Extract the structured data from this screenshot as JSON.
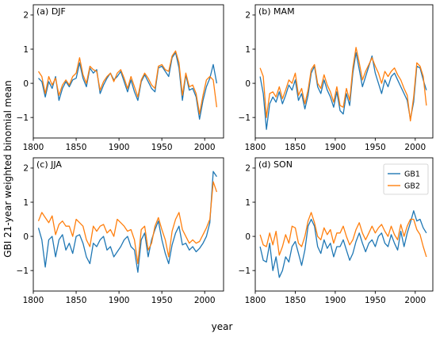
{
  "figure": {
    "ylabel": "GBI 21-year weighted binomial mean",
    "xlabel": "year",
    "colors": {
      "GB1": "#1f77b4",
      "GB2": "#ff7f0e"
    }
  },
  "chart_data": [
    {
      "type": "line",
      "panel": "(a) DJF",
      "xlim": [
        1800,
        2022
      ],
      "ylim": [
        -1.6,
        2.3
      ],
      "xticks": [
        1800,
        1850,
        1900,
        1950,
        2000
      ],
      "yticks": [
        -1,
        0,
        1,
        2
      ],
      "series": [
        {
          "name": "GB1",
          "color": "#1f77b4",
          "x": [
            1806,
            1810,
            1814,
            1818,
            1822,
            1826,
            1830,
            1834,
            1838,
            1842,
            1846,
            1850,
            1854,
            1858,
            1862,
            1866,
            1870,
            1874,
            1878,
            1882,
            1886,
            1890,
            1894,
            1898,
            1902,
            1906,
            1910,
            1914,
            1918,
            1922,
            1926,
            1930,
            1934,
            1938,
            1942,
            1946,
            1950,
            1954,
            1958,
            1962,
            1966,
            1970,
            1974,
            1978,
            1982,
            1986,
            1990,
            1994,
            1998,
            2002,
            2006,
            2010,
            2014
          ],
          "y": [
            0.15,
            0.05,
            -0.4,
            0.05,
            -0.15,
            0.2,
            -0.5,
            -0.15,
            0.05,
            -0.1,
            0.1,
            0.15,
            0.6,
            0.15,
            -0.1,
            0.45,
            0.3,
            0.4,
            -0.3,
            -0.05,
            0.15,
            0.3,
            0.1,
            0.2,
            0.35,
            0.05,
            -0.25,
            0.1,
            -0.25,
            -0.5,
            0.05,
            0.25,
            0.05,
            -0.15,
            -0.25,
            0.45,
            0.5,
            0.35,
            0.2,
            0.75,
            0.9,
            0.45,
            -0.5,
            0.25,
            -0.2,
            -0.15,
            -0.4,
            -1.05,
            -0.5,
            -0.1,
            0.15,
            0.55,
            0.0
          ]
        },
        {
          "name": "GB2",
          "color": "#ff7f0e",
          "x": [
            1806,
            1810,
            1814,
            1818,
            1822,
            1826,
            1830,
            1834,
            1838,
            1842,
            1846,
            1850,
            1854,
            1858,
            1862,
            1866,
            1870,
            1874,
            1878,
            1882,
            1886,
            1890,
            1894,
            1898,
            1902,
            1906,
            1910,
            1914,
            1918,
            1922,
            1926,
            1930,
            1934,
            1938,
            1942,
            1946,
            1950,
            1954,
            1958,
            1962,
            1966,
            1970,
            1974,
            1978,
            1982,
            1986,
            1990,
            1994,
            1998,
            2002,
            2006,
            2010,
            2014
          ],
          "y": [
            0.35,
            0.2,
            -0.3,
            0.2,
            -0.05,
            0.15,
            -0.35,
            -0.05,
            0.1,
            -0.05,
            0.2,
            0.3,
            0.75,
            0.25,
            0.0,
            0.5,
            0.4,
            0.35,
            -0.2,
            0.05,
            0.2,
            0.3,
            0.05,
            0.3,
            0.4,
            0.15,
            -0.15,
            0.2,
            -0.1,
            -0.4,
            0.1,
            0.3,
            0.15,
            -0.05,
            -0.15,
            0.5,
            0.55,
            0.4,
            0.35,
            0.8,
            0.95,
            0.6,
            -0.35,
            0.3,
            -0.1,
            -0.05,
            -0.3,
            -0.9,
            -0.35,
            0.1,
            0.2,
            0.1,
            -0.7
          ]
        }
      ]
    },
    {
      "type": "line",
      "panel": "(b) MAM",
      "xlim": [
        1800,
        2022
      ],
      "ylim": [
        -1.6,
        2.3
      ],
      "xticks": [
        1800,
        1850,
        1900,
        1950,
        2000
      ],
      "yticks": [
        -1,
        0,
        1,
        2
      ],
      "series": [
        {
          "name": "GB1",
          "color": "#1f77b4",
          "x": [
            1806,
            1810,
            1814,
            1818,
            1822,
            1826,
            1830,
            1834,
            1838,
            1842,
            1846,
            1850,
            1854,
            1858,
            1862,
            1866,
            1870,
            1874,
            1878,
            1882,
            1886,
            1890,
            1894,
            1898,
            1902,
            1906,
            1910,
            1914,
            1918,
            1922,
            1926,
            1930,
            1934,
            1938,
            1942,
            1946,
            1950,
            1954,
            1958,
            1962,
            1966,
            1970,
            1974,
            1978,
            1982,
            1986,
            1990,
            1994,
            1998,
            2002,
            2006,
            2010,
            2014
          ],
          "y": [
            0.2,
            -0.3,
            -1.35,
            -0.6,
            -0.4,
            -0.55,
            -0.25,
            -0.6,
            -0.35,
            -0.05,
            -0.2,
            0.1,
            -0.5,
            -0.3,
            -0.75,
            -0.35,
            0.3,
            0.5,
            -0.1,
            -0.3,
            0.1,
            -0.2,
            -0.4,
            -0.7,
            -0.25,
            -0.8,
            -0.9,
            -0.3,
            -0.65,
            0.3,
            0.9,
            0.4,
            -0.1,
            0.2,
            0.5,
            0.8,
            0.3,
            0.0,
            -0.3,
            0.1,
            -0.1,
            0.2,
            0.3,
            0.1,
            -0.1,
            -0.3,
            -0.5,
            -1.05,
            -0.55,
            0.5,
            0.45,
            0.1,
            -0.2
          ]
        },
        {
          "name": "GB2",
          "color": "#ff7f0e",
          "x": [
            1806,
            1810,
            1814,
            1818,
            1822,
            1826,
            1830,
            1834,
            1838,
            1842,
            1846,
            1850,
            1854,
            1858,
            1862,
            1866,
            1870,
            1874,
            1878,
            1882,
            1886,
            1890,
            1894,
            1898,
            1902,
            1906,
            1910,
            1914,
            1918,
            1922,
            1926,
            1930,
            1934,
            1938,
            1942,
            1946,
            1950,
            1954,
            1958,
            1962,
            1966,
            1970,
            1974,
            1978,
            1982,
            1986,
            1990,
            1994,
            1998,
            2002,
            2006,
            2010,
            2014
          ],
          "y": [
            0.45,
            0.2,
            -1.0,
            -0.3,
            -0.25,
            -0.4,
            -0.1,
            -0.45,
            -0.2,
            0.1,
            0.0,
            0.3,
            -0.35,
            -0.15,
            -0.6,
            -0.2,
            0.4,
            0.55,
            0.0,
            -0.15,
            0.25,
            -0.05,
            -0.25,
            -0.55,
            -0.1,
            -0.65,
            -0.7,
            -0.15,
            -0.5,
            0.45,
            1.05,
            0.6,
            0.1,
            0.35,
            0.55,
            0.75,
            0.5,
            0.3,
            0.0,
            0.35,
            0.2,
            0.35,
            0.45,
            0.25,
            0.1,
            -0.15,
            -0.35,
            -1.1,
            -0.4,
            0.6,
            0.5,
            0.2,
            -0.65
          ]
        }
      ]
    },
    {
      "type": "line",
      "panel": "(c) JJA",
      "xlim": [
        1800,
        2022
      ],
      "ylim": [
        -1.6,
        2.3
      ],
      "xticks": [
        1800,
        1850,
        1900,
        1950,
        2000
      ],
      "yticks": [
        -1,
        0,
        1,
        2
      ],
      "series": [
        {
          "name": "GB1",
          "color": "#1f77b4",
          "x": [
            1806,
            1810,
            1814,
            1818,
            1822,
            1826,
            1830,
            1834,
            1838,
            1842,
            1846,
            1850,
            1854,
            1858,
            1862,
            1866,
            1870,
            1874,
            1878,
            1882,
            1886,
            1890,
            1894,
            1898,
            1902,
            1906,
            1910,
            1914,
            1918,
            1922,
            1926,
            1930,
            1934,
            1938,
            1942,
            1946,
            1950,
            1954,
            1958,
            1962,
            1966,
            1970,
            1974,
            1978,
            1982,
            1986,
            1990,
            1994,
            1998,
            2002,
            2006,
            2010,
            2014
          ],
          "y": [
            0.25,
            -0.1,
            -0.9,
            -0.1,
            0.0,
            -0.6,
            -0.1,
            0.05,
            -0.4,
            -0.2,
            -0.5,
            0.0,
            0.05,
            -0.2,
            -0.6,
            -0.8,
            -0.2,
            -0.3,
            -0.1,
            0.0,
            -0.4,
            -0.3,
            -0.6,
            -0.45,
            -0.3,
            -0.1,
            0.0,
            -0.3,
            -0.4,
            -1.05,
            -0.1,
            0.1,
            -0.6,
            -0.1,
            0.2,
            0.45,
            -0.1,
            -0.5,
            -0.8,
            -0.25,
            0.1,
            0.3,
            -0.25,
            -0.2,
            -0.4,
            -0.3,
            -0.45,
            -0.35,
            -0.2,
            0.0,
            0.4,
            1.9,
            1.75
          ]
        },
        {
          "name": "GB2",
          "color": "#ff7f0e",
          "x": [
            1806,
            1810,
            1814,
            1818,
            1822,
            1826,
            1830,
            1834,
            1838,
            1842,
            1846,
            1850,
            1854,
            1858,
            1862,
            1866,
            1870,
            1874,
            1878,
            1882,
            1886,
            1890,
            1894,
            1898,
            1902,
            1906,
            1910,
            1914,
            1918,
            1922,
            1926,
            1930,
            1934,
            1938,
            1942,
            1946,
            1950,
            1954,
            1958,
            1962,
            1966,
            1970,
            1974,
            1978,
            1982,
            1986,
            1990,
            1994,
            1998,
            2002,
            2006,
            2010,
            2014
          ],
          "y": [
            0.45,
            0.7,
            0.55,
            0.4,
            0.6,
            0.05,
            0.35,
            0.45,
            0.3,
            0.3,
            0.0,
            0.5,
            0.4,
            0.3,
            -0.1,
            -0.3,
            0.3,
            0.15,
            0.3,
            0.35,
            0.1,
            0.2,
            0.0,
            0.5,
            0.4,
            0.3,
            0.15,
            0.2,
            -0.1,
            -0.8,
            0.2,
            0.3,
            -0.4,
            -0.2,
            0.3,
            0.55,
            0.2,
            -0.1,
            -0.6,
            0.15,
            0.5,
            0.7,
            0.2,
            0.0,
            -0.2,
            -0.1,
            -0.2,
            -0.15,
            0.05,
            0.25,
            0.5,
            1.6,
            1.3
          ]
        }
      ]
    },
    {
      "type": "line",
      "panel": "(d) SON",
      "xlim": [
        1800,
        2022
      ],
      "ylim": [
        -1.6,
        2.3
      ],
      "xticks": [
        1800,
        1850,
        1900,
        1950,
        2000
      ],
      "yticks": [
        -1,
        0,
        1,
        2
      ],
      "series": [
        {
          "name": "GB1",
          "color": "#1f77b4",
          "x": [
            1806,
            1810,
            1814,
            1818,
            1822,
            1826,
            1830,
            1834,
            1838,
            1842,
            1846,
            1850,
            1854,
            1858,
            1862,
            1866,
            1870,
            1874,
            1878,
            1882,
            1886,
            1890,
            1894,
            1898,
            1902,
            1906,
            1910,
            1914,
            1918,
            1922,
            1926,
            1930,
            1934,
            1938,
            1942,
            1946,
            1950,
            1954,
            1958,
            1962,
            1966,
            1970,
            1974,
            1978,
            1982,
            1986,
            1990,
            1994,
            1998,
            2002,
            2006,
            2010,
            2014
          ],
          "y": [
            -0.3,
            -0.7,
            -0.75,
            -0.2,
            -1.0,
            -0.6,
            -1.2,
            -1.0,
            -0.6,
            -0.75,
            -0.3,
            -0.15,
            -0.5,
            -0.85,
            -0.4,
            0.3,
            0.5,
            0.3,
            -0.3,
            -0.5,
            -0.1,
            -0.35,
            -0.2,
            -0.6,
            -0.3,
            -0.3,
            -0.1,
            -0.4,
            -0.7,
            -0.5,
            -0.15,
            0.1,
            -0.2,
            -0.45,
            -0.2,
            -0.1,
            -0.3,
            0.0,
            0.1,
            -0.2,
            -0.3,
            0.05,
            -0.2,
            -0.4,
            0.15,
            -0.3,
            0.1,
            0.4,
            0.75,
            0.45,
            0.5,
            0.25,
            0.1
          ]
        },
        {
          "name": "GB2",
          "color": "#ff7f0e",
          "x": [
            1806,
            1810,
            1814,
            1818,
            1822,
            1826,
            1830,
            1834,
            1838,
            1842,
            1846,
            1850,
            1854,
            1858,
            1862,
            1866,
            1870,
            1874,
            1878,
            1882,
            1886,
            1890,
            1894,
            1898,
            1902,
            1906,
            1910,
            1914,
            1918,
            1922,
            1926,
            1930,
            1934,
            1938,
            1942,
            1946,
            1950,
            1954,
            1958,
            1962,
            1966,
            1970,
            1974,
            1978,
            1982,
            1986,
            1990,
            1994,
            1998,
            2002,
            2006,
            2010,
            2014
          ],
          "y": [
            0.05,
            -0.25,
            -0.3,
            0.1,
            -0.25,
            0.15,
            -0.55,
            -0.3,
            0.05,
            -0.2,
            0.3,
            0.25,
            -0.2,
            -0.3,
            0.0,
            0.45,
            0.7,
            0.4,
            0.0,
            -0.1,
            0.25,
            0.05,
            0.2,
            -0.2,
            0.1,
            0.1,
            0.3,
            0.0,
            -0.25,
            -0.1,
            0.2,
            0.4,
            0.1,
            -0.1,
            0.1,
            0.3,
            0.1,
            0.25,
            0.35,
            0.15,
            0.0,
            0.3,
            0.05,
            -0.1,
            0.35,
            0.0,
            0.3,
            0.5,
            0.5,
            0.2,
            0.05,
            -0.3,
            -0.6
          ]
        }
      ]
    }
  ]
}
